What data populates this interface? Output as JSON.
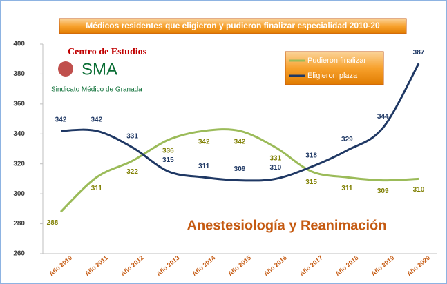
{
  "chart_data": {
    "type": "line",
    "title": "Médicos residentes que eligieron y pudieron finalizar especialidad 2010-20",
    "annotation": "Anestesiología y Reanimación",
    "logo": {
      "line1": "Centro de Estudios",
      "line2": "SMA",
      "line3": "Sindicato Médico de Granada"
    },
    "categories": [
      "Año 2010",
      "Año 2011",
      "Año 2012",
      "Año 2013",
      "Año 2014",
      "Año 2015",
      "Año 2016",
      "Año 2017",
      "Año 2018",
      "Año 2019",
      "Año 2020"
    ],
    "series": [
      {
        "name": "Pudieron finalizar",
        "color": "#9bbb59",
        "label_color": "#7f7f00",
        "values": [
          288,
          311,
          322,
          336,
          342,
          342,
          331,
          315,
          311,
          309,
          310
        ]
      },
      {
        "name": "Eligieron plaza",
        "color": "#1f3864",
        "label_color": "#1f3864",
        "values": [
          342,
          342,
          331,
          315,
          311,
          309,
          310,
          318,
          329,
          344,
          387
        ]
      }
    ],
    "ylim": [
      260,
      400
    ],
    "yticks": [
      260,
      280,
      300,
      320,
      340,
      360,
      380,
      400
    ],
    "grid": false
  }
}
